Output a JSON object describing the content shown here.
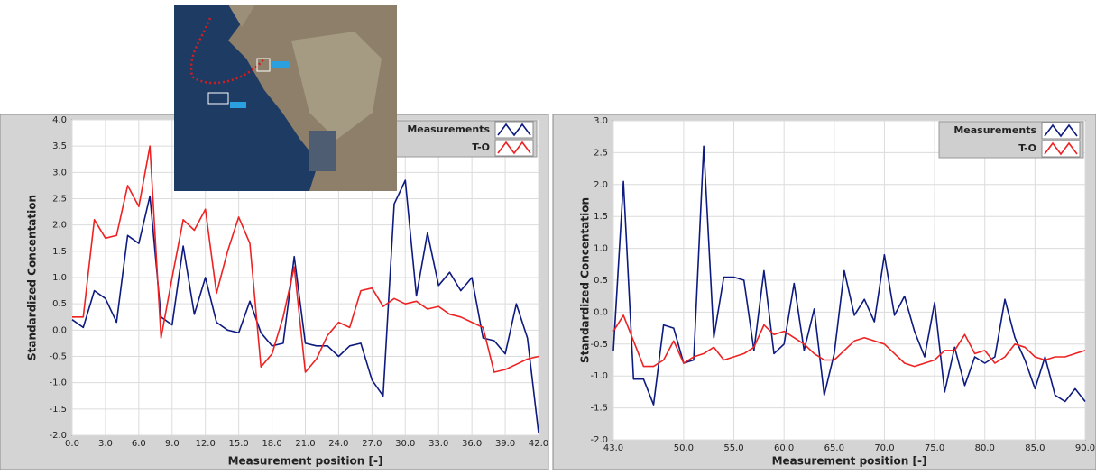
{
  "chart_data": [
    {
      "type": "line",
      "y_label": "Standardized Concentation",
      "x_label": "Measurement position [-]",
      "x": [
        0,
        1,
        2,
        3,
        4,
        5,
        6,
        7,
        8,
        9,
        10,
        11,
        12,
        13,
        14,
        15,
        16,
        17,
        18,
        19,
        20,
        21,
        22,
        23,
        24,
        25,
        26,
        27,
        28,
        29,
        30,
        31,
        32,
        33,
        34,
        35,
        36,
        37,
        38,
        39,
        40,
        41,
        42
      ],
      "series": [
        {
          "name": "Measurements",
          "color": "#0d1a80",
          "values": [
            0.2,
            0.05,
            0.75,
            0.6,
            0.15,
            1.8,
            1.65,
            2.55,
            0.25,
            0.1,
            1.6,
            0.3,
            1.0,
            0.15,
            0.0,
            -0.05,
            0.55,
            -0.05,
            -0.3,
            -0.25,
            1.4,
            -0.25,
            -0.3,
            -0.3,
            -0.5,
            -0.3,
            -0.25,
            -0.95,
            -1.25,
            2.4,
            2.85,
            0.65,
            1.85,
            0.85,
            1.1,
            0.75,
            1.0,
            -0.15,
            -0.2,
            -0.45,
            0.5,
            -0.15,
            -1.95
          ]
        },
        {
          "name": "T-O",
          "color": "#ee2222",
          "values": [
            0.25,
            0.25,
            2.1,
            1.75,
            1.8,
            2.75,
            2.35,
            3.5,
            -0.15,
            1.0,
            2.1,
            1.9,
            2.3,
            0.7,
            1.5,
            2.15,
            1.65,
            -0.7,
            -0.45,
            0.25,
            1.2,
            -0.8,
            -0.55,
            -0.1,
            0.15,
            0.05,
            0.75,
            0.8,
            0.45,
            0.6,
            0.5,
            0.55,
            0.4,
            0.45,
            0.3,
            0.25,
            0.15,
            0.05,
            -0.8,
            -0.75,
            -0.65,
            -0.55,
            -0.5
          ]
        }
      ],
      "xlim": [
        0,
        42
      ],
      "ylim": [
        -2,
        4
      ],
      "xticks": [
        {
          "value": 0,
          "label": "0.0"
        },
        {
          "value": 3,
          "label": "3.0"
        },
        {
          "value": 6,
          "label": "6.0"
        },
        {
          "value": 9,
          "label": "9.0"
        },
        {
          "value": 12,
          "label": "12.0"
        },
        {
          "value": 15,
          "label": "15.0"
        },
        {
          "value": 18,
          "label": "18.0"
        },
        {
          "value": 21,
          "label": "21.0"
        },
        {
          "value": 24,
          "label": "24.0"
        },
        {
          "value": 27,
          "label": "27.0"
        },
        {
          "value": 30,
          "label": "30.0"
        },
        {
          "value": 33,
          "label": "33.0"
        },
        {
          "value": 36,
          "label": "36.0"
        },
        {
          "value": 39,
          "label": "39.0"
        },
        {
          "value": 42,
          "label": "42.0"
        }
      ],
      "yticks": [
        {
          "value": -2,
          "label": "-2.0"
        },
        {
          "value": -1.5,
          "label": "-1.5"
        },
        {
          "value": -1,
          "label": "-1.0"
        },
        {
          "value": -0.5,
          "label": "-0.5"
        },
        {
          "value": 0,
          "label": "0.0"
        },
        0.5,
        {
          "value": 1,
          "label": "1.0"
        },
        1.5,
        {
          "value": 2,
          "label": "2.0"
        },
        2.5,
        {
          "value": 3,
          "label": "3.0"
        },
        3.5,
        {
          "value": 4,
          "label": "4.0"
        }
      ],
      "grid": true,
      "legend": "upper right"
    },
    {
      "type": "line",
      "y_label": "Standardized Concentation",
      "x_label": "Measurement position [-]",
      "x": [
        43,
        44,
        45,
        46,
        47,
        48,
        49,
        50,
        51,
        52,
        53,
        54,
        55,
        56,
        57,
        58,
        59,
        60,
        61,
        62,
        63,
        64,
        65,
        66,
        67,
        68,
        69,
        70,
        71,
        72,
        73,
        74,
        75,
        76,
        77,
        78,
        79,
        80,
        81,
        82,
        83,
        84,
        85,
        86,
        87,
        88,
        89,
        90
      ],
      "series": [
        {
          "name": "Measurements",
          "color": "#0d1a80",
          "values": [
            -0.6,
            2.05,
            -1.05,
            -1.05,
            -1.45,
            -0.2,
            -0.25,
            -0.8,
            -0.75,
            2.6,
            -0.4,
            0.55,
            0.55,
            0.5,
            -0.6,
            0.65,
            -0.65,
            -0.5,
            0.45,
            -0.6,
            0.05,
            -1.3,
            -0.65,
            0.65,
            -0.05,
            0.2,
            -0.15,
            0.9,
            -0.05,
            0.25,
            -0.3,
            -0.7,
            0.15,
            -1.25,
            -0.55,
            -1.15,
            -0.7,
            -0.8,
            -0.7,
            0.2,
            -0.4,
            -0.75,
            -1.2,
            -0.7,
            -1.3,
            -1.4,
            -1.2,
            -1.4
          ]
        },
        {
          "name": "T-O",
          "color": "#ee2222",
          "values": [
            -0.3,
            -0.05,
            -0.45,
            -0.85,
            -0.85,
            -0.75,
            -0.45,
            -0.8,
            -0.7,
            -0.65,
            -0.55,
            -0.75,
            -0.7,
            -0.65,
            -0.55,
            -0.2,
            -0.35,
            -0.3,
            -0.4,
            -0.5,
            -0.65,
            -0.75,
            -0.75,
            -0.6,
            -0.45,
            -0.4,
            -0.45,
            -0.5,
            -0.65,
            -0.8,
            -0.85,
            -0.8,
            -0.75,
            -0.6,
            -0.6,
            -0.35,
            -0.65,
            -0.6,
            -0.8,
            -0.7,
            -0.5,
            -0.55,
            -0.7,
            -0.75,
            -0.7,
            -0.7,
            -0.65,
            -0.6
          ]
        }
      ],
      "xlim": [
        43,
        90
      ],
      "ylim": [
        -2,
        3
      ],
      "xticks": [
        {
          "value": 43,
          "label": "43.0"
        },
        {
          "value": 50,
          "label": "50.0"
        },
        {
          "value": 55,
          "label": "55.0"
        },
        {
          "value": 60,
          "label": "60.0"
        },
        {
          "value": 65,
          "label": "65.0"
        },
        {
          "value": 70,
          "label": "70.0"
        },
        {
          "value": 75,
          "label": "75.0"
        },
        {
          "value": 80,
          "label": "80.0"
        },
        {
          "value": 85,
          "label": "85.0"
        },
        {
          "value": 90,
          "label": "90.0"
        }
      ],
      "yticks": [
        {
          "value": -2,
          "label": "-2.0"
        },
        {
          "value": -1.5,
          "label": "-1.5"
        },
        {
          "value": -1,
          "label": "-1.0"
        },
        {
          "value": -0.5,
          "label": "-0.5"
        },
        {
          "value": 0,
          "label": "0.0"
        },
        0.5,
        {
          "value": 1,
          "label": "1.0"
        },
        1.5,
        {
          "value": 2,
          "label": "2.0"
        },
        2.5,
        {
          "value": 3,
          "label": "3.0"
        }
      ],
      "grid": true,
      "legend": "upper right"
    }
  ]
}
